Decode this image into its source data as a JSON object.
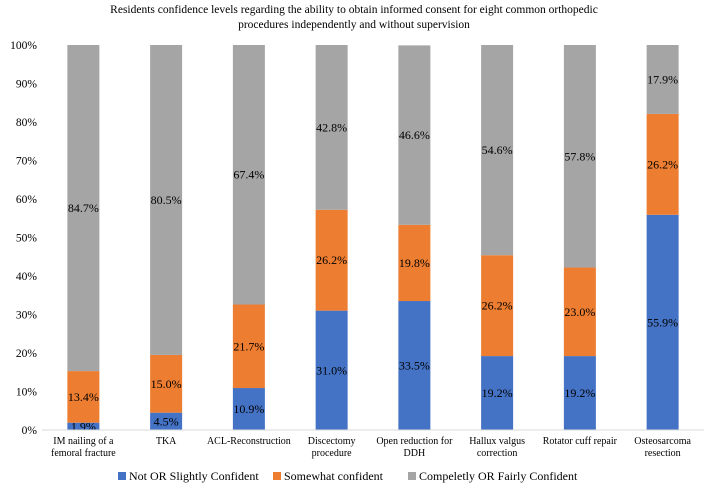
{
  "chart_data": {
    "type": "bar",
    "stacked": true,
    "percent_stacked": true,
    "title": "Residents confidence levels regarding the ability to obtain informed consent for eight common orthopedic procedures independently and without supervision",
    "categories": [
      "IM nailing of a femoral fracture",
      "TKA",
      "ACL-Reconstruction",
      "Discectomy procedure",
      "Open reduction for DDH",
      "Hallux valgus correction",
      "Rotator cuff repair",
      "Osteosarcoma resection"
    ],
    "series": [
      {
        "name": "Not OR Slightly Confident",
        "color": "#4472C4",
        "values": [
          1.9,
          4.5,
          10.9,
          31.0,
          33.5,
          19.2,
          19.2,
          55.9
        ],
        "labels": [
          "1.9%",
          "4.5%",
          "10.9%",
          "31.0%",
          "33.5%",
          "19.2%",
          "19.2%",
          "55.9%"
        ]
      },
      {
        "name": "Somewhat confident",
        "color": "#ED7D31",
        "values": [
          13.4,
          15.0,
          21.7,
          26.2,
          19.8,
          26.2,
          23.0,
          26.2
        ],
        "labels": [
          "13.4%",
          "15.0%",
          "21.7%",
          "26.2%",
          "19.8%",
          "26.2%",
          "23.0%",
          "26.2%"
        ]
      },
      {
        "name": "Compeletly OR Fairly Confident",
        "color": "#A5A5A5",
        "values": [
          84.7,
          80.5,
          67.4,
          42.8,
          46.6,
          54.6,
          57.8,
          17.9
        ],
        "labels": [
          "84.7%",
          "80.5%",
          "67.4%",
          "42.8%",
          "46.6%",
          "54.6%",
          "57.8%",
          "17.9%"
        ]
      }
    ],
    "ylim": [
      0,
      100
    ],
    "yticks": [
      "0%",
      "10%",
      "20%",
      "30%",
      "40%",
      "50%",
      "60%",
      "70%",
      "80%",
      "90%",
      "100%"
    ],
    "legend_position": "bottom",
    "grid": false
  }
}
